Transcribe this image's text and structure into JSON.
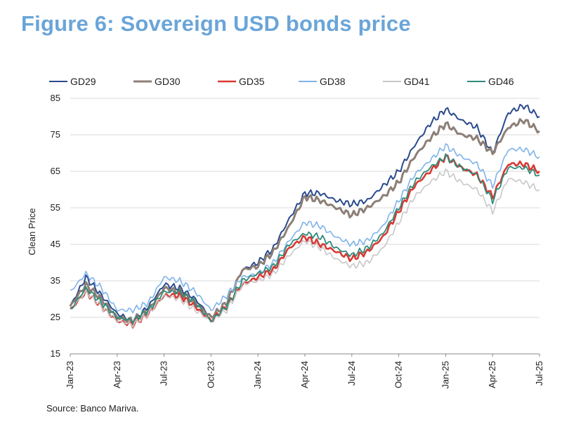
{
  "title": "Figure 6: Sovereign USD bonds price",
  "source": "Source: Banco Mariva.",
  "chart_data": {
    "type": "line",
    "ylabel": "Clean Price",
    "xlabel": "",
    "ylim": [
      15,
      85
    ],
    "yticks": [
      15,
      25,
      35,
      45,
      55,
      65,
      75,
      85
    ],
    "xticks": [
      "Jan-23",
      "Apr-23",
      "Jul-23",
      "Oct-23",
      "Jan-24",
      "Apr-24",
      "Jul-24",
      "Oct-24",
      "Jan-25",
      "Apr-25",
      "Jul-25"
    ],
    "grid": "horizontal",
    "legend_position": "top",
    "x": [
      "Jan-23",
      "Feb-23",
      "Mar-23",
      "Apr-23",
      "May-23",
      "Jun-23",
      "Jul-23",
      "Aug-23",
      "Sep-23",
      "Oct-23",
      "Nov-23",
      "Dec-23",
      "Jan-24",
      "Feb-24",
      "Mar-24",
      "Apr-24",
      "May-24",
      "Jun-24",
      "Jul-24",
      "Aug-24",
      "Sep-24",
      "Oct-24",
      "Nov-24",
      "Dec-24",
      "Jan-25",
      "Feb-25",
      "Mar-25",
      "Apr-25",
      "May-25",
      "Jun-25",
      "Jul-25"
    ],
    "series": [
      {
        "name": "GD29",
        "color": "#2a4a8c",
        "width": 2,
        "values": [
          28,
          36,
          31,
          26,
          24,
          28,
          34,
          33,
          30,
          25,
          29,
          38,
          40,
          44,
          52,
          59,
          59,
          57,
          56,
          57,
          61,
          65,
          72,
          78,
          82,
          79,
          77,
          70,
          81,
          83,
          80
        ]
      },
      {
        "name": "GD30",
        "color": "#8c7f76",
        "width": 3,
        "values": [
          28,
          34,
          30,
          25,
          24,
          27,
          33,
          32,
          29,
          25,
          29,
          38,
          39,
          43,
          50,
          58,
          57,
          55,
          53,
          55,
          58,
          62,
          69,
          74,
          78,
          75,
          74,
          70,
          77,
          79,
          76
        ]
      },
      {
        "name": "GD35",
        "color": "#d83a34",
        "width": 2.6,
        "values": [
          27,
          32,
          28,
          24,
          23,
          26,
          31,
          31,
          28,
          24,
          28,
          34,
          36,
          38,
          44,
          47,
          45,
          43,
          41,
          43,
          47,
          54,
          61,
          65,
          69,
          66,
          64,
          58,
          67,
          67,
          65
        ]
      },
      {
        "name": "GD38",
        "color": "#7fb3e8",
        "width": 1.6,
        "values": [
          32,
          37,
          33,
          27,
          27,
          29,
          36,
          35,
          32,
          27,
          31,
          36,
          37,
          40,
          46,
          51,
          50,
          47,
          45,
          46,
          50,
          57,
          64,
          68,
          72,
          69,
          67,
          61,
          71,
          71,
          69
        ]
      },
      {
        "name": "GD41",
        "color": "#c8c8c8",
        "width": 1.6,
        "values": [
          27,
          32,
          28,
          24,
          23,
          26,
          31,
          30,
          27,
          24,
          27,
          34,
          35,
          37,
          42,
          46,
          44,
          41,
          39,
          40,
          44,
          51,
          58,
          62,
          65,
          62,
          60,
          54,
          63,
          62,
          60
        ]
      },
      {
        "name": "GD46",
        "color": "#2e8b7a",
        "width": 1.8,
        "values": [
          27,
          33,
          29,
          25,
          24,
          27,
          32,
          32,
          29,
          24,
          28,
          35,
          37,
          39,
          45,
          48,
          47,
          44,
          42,
          44,
          48,
          55,
          62,
          66,
          69,
          66,
          64,
          57,
          66,
          66,
          64
        ]
      }
    ]
  }
}
